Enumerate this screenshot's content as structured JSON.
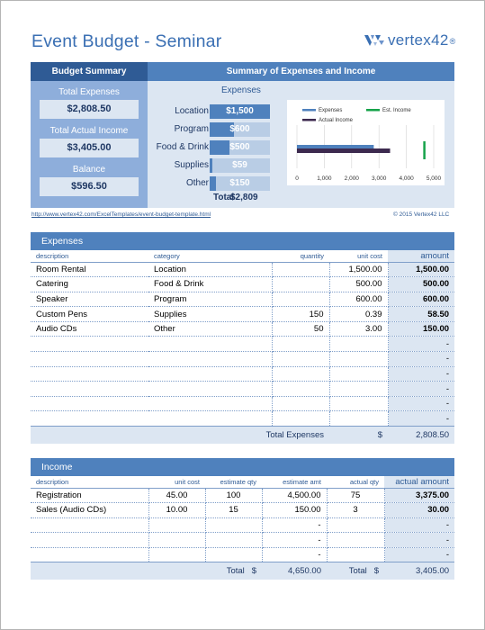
{
  "title": "Event Budget - Seminar",
  "logo": {
    "text": "vertex42",
    "mark": "®"
  },
  "summary": {
    "heading": "Budget Summary",
    "total_expenses_label": "Total Expenses",
    "total_expenses": "$2,808.50",
    "total_actual_income_label": "Total Actual Income",
    "total_actual_income": "$3,405.00",
    "balance_label": "Balance",
    "balance": "$596.50"
  },
  "summary_right": {
    "heading": "Summary of Expenses and Income",
    "expenses_title": "Expenses",
    "bars": [
      {
        "label": "Location",
        "value": "$1,500",
        "fraction": 1.0
      },
      {
        "label": "Program",
        "value": "$600",
        "fraction": 0.4
      },
      {
        "label": "Food & Drink",
        "value": "$500",
        "fraction": 0.333
      },
      {
        "label": "Supplies",
        "value": "$59",
        "fraction": 0.039
      },
      {
        "label": "Other",
        "value": "$150",
        "fraction": 0.1
      }
    ],
    "total_label": "Total",
    "total_value": "$2,809"
  },
  "chart_data": {
    "type": "bar",
    "orientation": "horizontal",
    "legend": [
      "Expenses",
      "Est. Income",
      "Actual Income"
    ],
    "legend_placement": "top",
    "series": [
      {
        "name": "Expenses",
        "value": 2808.5,
        "color": "#4f81bd"
      },
      {
        "name": "Actual Income",
        "value": 3405,
        "color": "#3d2a4f"
      },
      {
        "name": "Est. Income",
        "value": 4650,
        "color": "#16a34a"
      }
    ],
    "x_ticks": [
      "0",
      "1,000",
      "2,000",
      "3,000",
      "4,000",
      "5,000"
    ],
    "xlim": [
      0,
      5000
    ],
    "grid": true
  },
  "footer_links": {
    "url": "http://www.vertex42.com/ExcelTemplates/event-budget-template.html",
    "copyright": "© 2015 Vertex42 LLC"
  },
  "expenses": {
    "heading": "Expenses",
    "columns": [
      "description",
      "category",
      "quantity",
      "unit cost",
      "amount"
    ],
    "rows": [
      {
        "description": "Room Rental",
        "category": "Location",
        "quantity": "",
        "unit_cost": "1,500.00",
        "amount": "1,500.00"
      },
      {
        "description": "Catering",
        "category": "Food & Drink",
        "quantity": "",
        "unit_cost": "500.00",
        "amount": "500.00"
      },
      {
        "description": "Speaker",
        "category": "Program",
        "quantity": "",
        "unit_cost": "600.00",
        "amount": "600.00"
      },
      {
        "description": "Custom Pens",
        "category": "Supplies",
        "quantity": "150",
        "unit_cost": "0.39",
        "amount": "58.50"
      },
      {
        "description": "Audio CDs",
        "category": "Other",
        "quantity": "50",
        "unit_cost": "3.00",
        "amount": "150.00"
      },
      {
        "description": "",
        "category": "",
        "quantity": "",
        "unit_cost": "",
        "amount": "-"
      },
      {
        "description": "",
        "category": "",
        "quantity": "",
        "unit_cost": "",
        "amount": "-"
      },
      {
        "description": "",
        "category": "",
        "quantity": "",
        "unit_cost": "",
        "amount": "-"
      },
      {
        "description": "",
        "category": "",
        "quantity": "",
        "unit_cost": "",
        "amount": "-"
      },
      {
        "description": "",
        "category": "",
        "quantity": "",
        "unit_cost": "",
        "amount": "-"
      },
      {
        "description": "",
        "category": "",
        "quantity": "",
        "unit_cost": "",
        "amount": "-"
      }
    ],
    "total_label": "Total Expenses",
    "total_currency": "$",
    "total_value": "2,808.50"
  },
  "income": {
    "heading": "Income",
    "columns": [
      "description",
      "unit cost",
      "estimate qty",
      "estimate amt",
      "actual qty",
      "actual amount"
    ],
    "rows": [
      {
        "description": "Registration",
        "unit_cost": "45.00",
        "est_qty": "100",
        "est_amt": "4,500.00",
        "act_qty": "75",
        "act_amt": "3,375.00"
      },
      {
        "description": "Sales (Audio CDs)",
        "unit_cost": "10.00",
        "est_qty": "15",
        "est_amt": "150.00",
        "act_qty": "3",
        "act_amt": "30.00"
      },
      {
        "description": "",
        "unit_cost": "",
        "est_qty": "",
        "est_amt": "-",
        "act_qty": "",
        "act_amt": "-"
      },
      {
        "description": "",
        "unit_cost": "",
        "est_qty": "",
        "est_amt": "-",
        "act_qty": "",
        "act_amt": "-"
      },
      {
        "description": "",
        "unit_cost": "",
        "est_qty": "",
        "est_amt": "-",
        "act_qty": "",
        "act_amt": "-"
      }
    ],
    "est_total_label": "Total",
    "est_total_currency": "$",
    "est_total_value": "4,650.00",
    "act_total_label": "Total",
    "act_total_currency": "$",
    "act_total_value": "3,405.00"
  }
}
